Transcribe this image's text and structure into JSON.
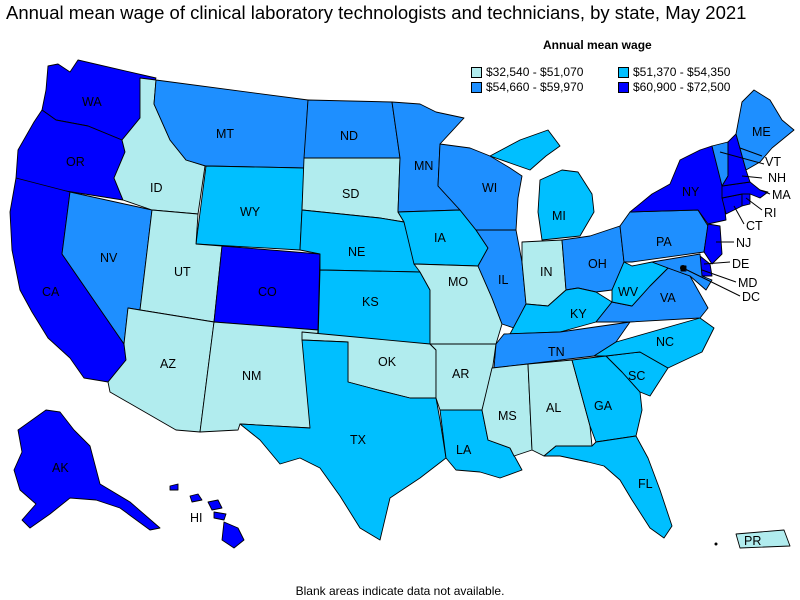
{
  "title": "Annual mean wage of clinical laboratory technologists and technicians, by state, May 2021",
  "legend": {
    "title": "Annual mean wage",
    "bins": [
      {
        "label": "$32,540 - $51,070",
        "color": "#b1ecee"
      },
      {
        "label": "$51,370 - $54,350",
        "color": "#00bfff"
      },
      {
        "label": "$54,660 - $59,970",
        "color": "#1e8fff"
      },
      {
        "label": "$60,900 - $72,500",
        "color": "#0000ff"
      }
    ]
  },
  "note": "Blank areas indicate data not available.",
  "states": [
    {
      "code": "WA",
      "bin": 3
    },
    {
      "code": "OR",
      "bin": 3
    },
    {
      "code": "CA",
      "bin": 3
    },
    {
      "code": "NV",
      "bin": 2
    },
    {
      "code": "ID",
      "bin": 0
    },
    {
      "code": "MT",
      "bin": 2
    },
    {
      "code": "WY",
      "bin": 1
    },
    {
      "code": "UT",
      "bin": 0
    },
    {
      "code": "AZ",
      "bin": 0
    },
    {
      "code": "CO",
      "bin": 3
    },
    {
      "code": "NM",
      "bin": 0
    },
    {
      "code": "ND",
      "bin": 2
    },
    {
      "code": "SD",
      "bin": 0
    },
    {
      "code": "NE",
      "bin": 1
    },
    {
      "code": "KS",
      "bin": 1
    },
    {
      "code": "OK",
      "bin": 0
    },
    {
      "code": "TX",
      "bin": 1
    },
    {
      "code": "MN",
      "bin": 2
    },
    {
      "code": "IA",
      "bin": 1
    },
    {
      "code": "MO",
      "bin": 0
    },
    {
      "code": "AR",
      "bin": 0
    },
    {
      "code": "LA",
      "bin": 1
    },
    {
      "code": "WI",
      "bin": 2
    },
    {
      "code": "IL",
      "bin": 2
    },
    {
      "code": "MI",
      "bin": 1
    },
    {
      "code": "IN",
      "bin": 0
    },
    {
      "code": "OH",
      "bin": 2
    },
    {
      "code": "KY",
      "bin": 1
    },
    {
      "code": "TN",
      "bin": 2
    },
    {
      "code": "MS",
      "bin": 0
    },
    {
      "code": "AL",
      "bin": 0
    },
    {
      "code": "GA",
      "bin": 1
    },
    {
      "code": "FL",
      "bin": 1
    },
    {
      "code": "SC",
      "bin": 1
    },
    {
      "code": "NC",
      "bin": 1
    },
    {
      "code": "VA",
      "bin": 2
    },
    {
      "code": "WV",
      "bin": 1
    },
    {
      "code": "PA",
      "bin": 2
    },
    {
      "code": "NY",
      "bin": 3
    },
    {
      "code": "VT",
      "bin": 2
    },
    {
      "code": "NH",
      "bin": 3
    },
    {
      "code": "ME",
      "bin": 2
    },
    {
      "code": "MA",
      "bin": 3
    },
    {
      "code": "RI",
      "bin": 3
    },
    {
      "code": "CT",
      "bin": 3
    },
    {
      "code": "NJ",
      "bin": 3
    },
    {
      "code": "DE",
      "bin": 3
    },
    {
      "code": "MD",
      "bin": 2
    },
    {
      "code": "DC",
      "bin": 3
    },
    {
      "code": "AK",
      "bin": 3
    },
    {
      "code": "HI",
      "bin": 3
    },
    {
      "code": "PR",
      "bin": 0
    }
  ]
}
